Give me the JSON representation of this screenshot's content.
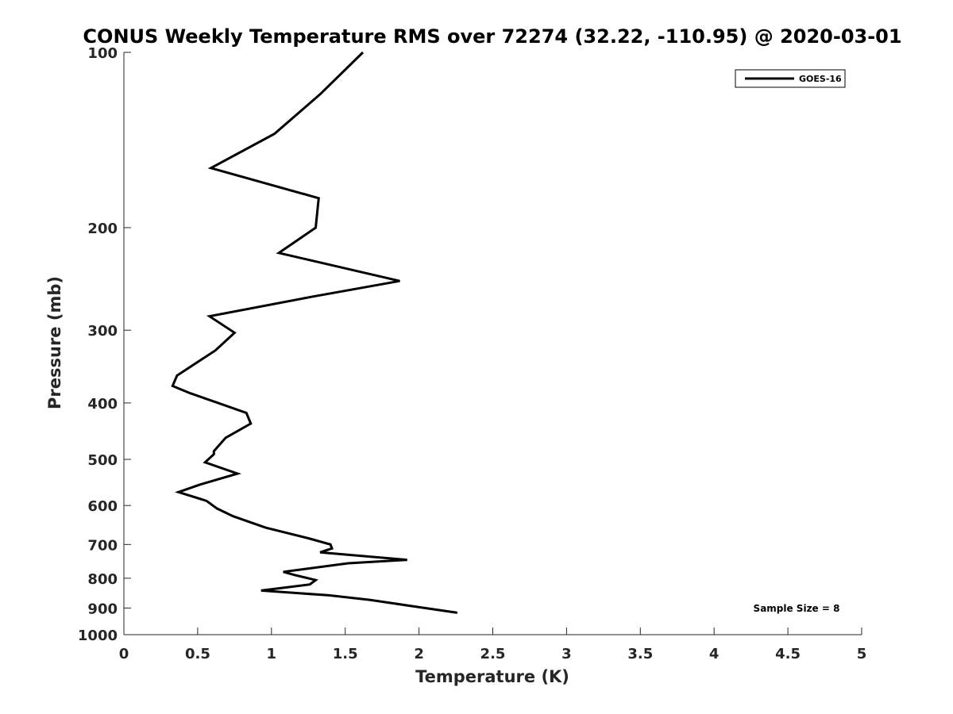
{
  "chart_data": {
    "type": "line",
    "title": "CONUS Weekly Temperature RMS over 72274 (32.22, -110.95) @ 2020-03-01",
    "xlabel": "Temperature (K)",
    "ylabel": "Pressure (mb)",
    "xlim": [
      0,
      5
    ],
    "ylim": [
      100,
      1000
    ],
    "y_scale": "log",
    "y_reversed": true,
    "x_ticks": [
      "0",
      "0.5",
      "1",
      "1.5",
      "2",
      "2.5",
      "3",
      "3.5",
      "4",
      "4.5",
      "5"
    ],
    "y_ticks": [
      "100",
      "200",
      "300",
      "400",
      "500",
      "600",
      "700",
      "800",
      "900",
      "1000"
    ],
    "grid": false,
    "legend": "top-right",
    "annotation": "Sample Size = 8",
    "series": [
      {
        "name": "GOES-16",
        "color": "#000000",
        "x": [
          1.62,
          1.33,
          1.02,
          0.59,
          1.32,
          1.3,
          1.05,
          1.87,
          1.27,
          0.58,
          0.75,
          0.62,
          0.36,
          0.33,
          0.45,
          0.83,
          0.86,
          0.69,
          0.61,
          0.61,
          0.55,
          0.77,
          0.52,
          0.37,
          0.56,
          0.63,
          0.74,
          0.96,
          1.25,
          1.4,
          1.41,
          1.33,
          1.92,
          1.52,
          1.08,
          1.16,
          1.3,
          1.26,
          0.93,
          1.39,
          1.67,
          2.26
        ],
        "y": [
          100,
          118,
          138,
          158,
          178,
          200,
          221,
          247,
          263,
          284,
          303,
          325,
          359,
          374,
          385,
          416,
          434,
          459,
          484,
          490,
          506,
          529,
          552,
          569,
          589,
          607,
          626,
          655,
          683,
          700,
          711,
          722,
          744,
          754,
          780,
          790,
          806,
          820,
          840,
          856,
          872,
          917
        ]
      }
    ]
  }
}
